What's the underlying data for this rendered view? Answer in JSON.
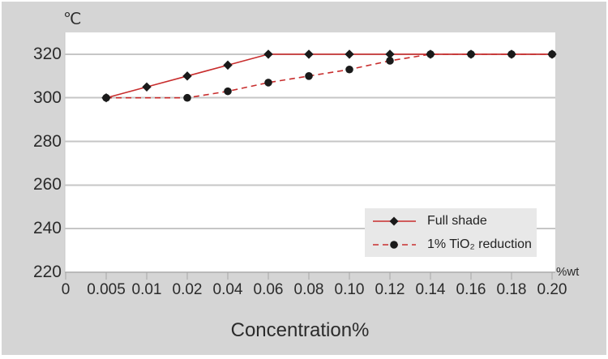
{
  "chart_data": {
    "type": "line",
    "title": "",
    "xlabel": "Concentration%",
    "x_unit_label": "%wt",
    "y_unit_label": "℃",
    "x_categories": [
      "0",
      "0.005",
      "0.01",
      "0.02",
      "0.04",
      "0.06",
      "0.08",
      "0.10",
      "0.12",
      "0.14",
      "0.16",
      "0.18",
      "0.20"
    ],
    "y_ticks": [
      220,
      240,
      260,
      280,
      300,
      320
    ],
    "ylim": [
      220,
      330
    ],
    "grid": true,
    "legend_position": "inside-bottom-right",
    "series": [
      {
        "name": "Full shade",
        "line_style": "solid",
        "marker": "diamond",
        "line_color": "#c82d2d",
        "marker_color": "#1a1a1a",
        "points": [
          {
            "x": "0.005",
            "y": 300
          },
          {
            "x": "0.01",
            "y": 305
          },
          {
            "x": "0.02",
            "y": 310
          },
          {
            "x": "0.04",
            "y": 315
          },
          {
            "x": "0.06",
            "y": 320
          },
          {
            "x": "0.08",
            "y": 320
          },
          {
            "x": "0.10",
            "y": 320
          },
          {
            "x": "0.12",
            "y": 320
          },
          {
            "x": "0.14",
            "y": 320
          },
          {
            "x": "0.16",
            "y": 320
          },
          {
            "x": "0.18",
            "y": 320
          },
          {
            "x": "0.20",
            "y": 320
          }
        ]
      },
      {
        "name": "1% TiO₂ reduction",
        "line_style": "dashed",
        "marker": "circle",
        "line_color": "#c82d2d",
        "marker_color": "#1a1a1a",
        "points": [
          {
            "x": "0.005",
            "y": 300
          },
          {
            "x": "0.02",
            "y": 300
          },
          {
            "x": "0.04",
            "y": 303
          },
          {
            "x": "0.06",
            "y": 307
          },
          {
            "x": "0.08",
            "y": 310
          },
          {
            "x": "0.10",
            "y": 313
          },
          {
            "x": "0.12",
            "y": 317
          },
          {
            "x": "0.14",
            "y": 320
          },
          {
            "x": "0.16",
            "y": 320
          },
          {
            "x": "0.18",
            "y": 320
          },
          {
            "x": "0.20",
            "y": 320
          }
        ]
      }
    ],
    "colors": {
      "background": "#d5d5d5",
      "plot_background": "#ffffff",
      "gridline": "#c6c6c6",
      "axis_line": "#b9b9b9",
      "tick": "#a8a8a8",
      "legend_background": "#e8e8e8",
      "line_red": "#c82d2d",
      "marker_black": "#1a1a1a",
      "text": "#2b2b2b"
    }
  }
}
